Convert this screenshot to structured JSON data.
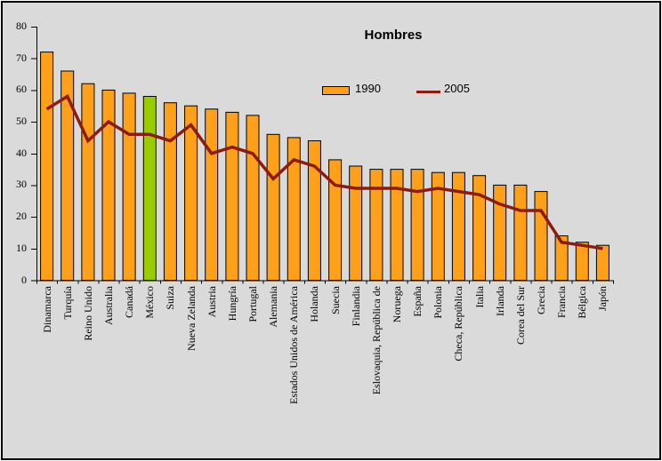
{
  "chart_data": {
    "type": "bar",
    "title": "Hombres",
    "categories": [
      "Dinamarca",
      "Turquía",
      "Reino Unido",
      "Australia",
      "Canadá",
      "México",
      "Suiza",
      "Nueva Zelanda",
      "Austria",
      "Hungría",
      "Portugal",
      "Alemania",
      "Estados Unidos de América",
      "Holanda",
      "Suecia",
      "Finlandia",
      "Eslovaquia, República de",
      "Noruega",
      "España",
      "Polonia",
      "Checa, República",
      "Italia",
      "Irlanda",
      "Corea del Sur",
      "Grecia",
      "Francia",
      "Bélgica",
      "Japón"
    ],
    "series": [
      {
        "name": "1990",
        "type": "bar",
        "color": "#FFA01A",
        "values": [
          72,
          66,
          62,
          60,
          59,
          58,
          56,
          55,
          54,
          53,
          52,
          46,
          45,
          44,
          38,
          36,
          35,
          35,
          35,
          34,
          34,
          33,
          30,
          30,
          28,
          14,
          12,
          11
        ]
      },
      {
        "name": "2005",
        "type": "line",
        "color": "#8E1B0E",
        "values": [
          54,
          58,
          44,
          50,
          46,
          46,
          44,
          49,
          40,
          42,
          40,
          32,
          38,
          36,
          30,
          29,
          29,
          29,
          28,
          29,
          28,
          27,
          24,
          22,
          22,
          12,
          11,
          10
        ]
      }
    ],
    "highlight": {
      "category": "México",
      "index": 5,
      "color": "#99CC00"
    },
    "ylim": [
      0,
      80
    ],
    "yticks": [
      0,
      10,
      20,
      30,
      40,
      50,
      60,
      70,
      80
    ],
    "xlabel": "",
    "ylabel": "",
    "grid": false,
    "legend_position": "inside-top",
    "plot_bg": "#DADADA",
    "axis_color": "#000000"
  }
}
